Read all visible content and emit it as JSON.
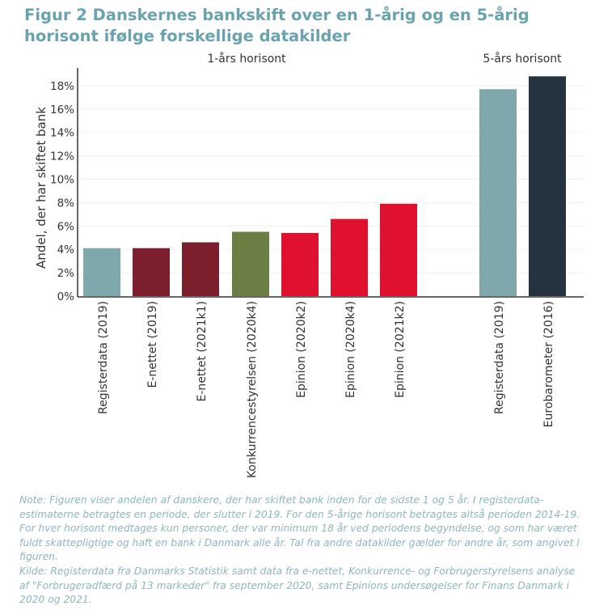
{
  "title": "Figur 2 Danskernes bankskift over en 1-årig og en 5-årig horisont ifølge forskellige datakilder",
  "chart_data": {
    "type": "bar",
    "title": "Figur 2 Danskernes bankskift over en 1-årig og en 5-årig horisont ifølge forskellige datakilder",
    "ylabel": "Andel, der har skiftet bank",
    "xlabel": "",
    "ylim": [
      0,
      18
    ],
    "yticks": [
      "0%",
      "2%",
      "4%",
      "6%",
      "8%",
      "10%",
      "12%",
      "14%",
      "16%",
      "18%"
    ],
    "groups": [
      {
        "label": "1-års horisont"
      },
      {
        "label": "5-års horisont"
      }
    ],
    "categories": [
      "Registerdata (2019)",
      "E-nettet (2019)",
      "E-nettet (2021k1)",
      "Konkurrencestyrelsen (2020k4)",
      "Epinion (2020k2)",
      "Epinion (2020k4)",
      "Epinion (2021k2)",
      "Registerdata (2019)",
      "Eurobarometer (2016)"
    ],
    "group_index": [
      0,
      0,
      0,
      0,
      0,
      0,
      0,
      1,
      1
    ],
    "values": [
      4.1,
      4.1,
      4.6,
      5.5,
      5.4,
      6.6,
      7.9,
      17.7,
      18.8
    ],
    "colors": [
      "#7fa8ad",
      "#7a1f2b",
      "#7a1f2b",
      "#6b7f45",
      "#e0102f",
      "#e0102f",
      "#e0102f",
      "#7fa8ad",
      "#253340"
    ],
    "grid": true
  },
  "note": "Note: Figuren viser andelen af danskere, der har skiftet bank inden for de sidste 1 og 5 år. I registerdata-estimaterne betragtes en periode, der slutter i 2019. For den 5-årige horisont betragtes altså perioden 2014-19. For hver horisont medtages kun personer, der var minimum 18 år ved periodens begyndelse, og som har været fuldt skattepligtige og haft en bank i Danmark alle år. Tal fra andre datakilder gælder for andre år, som angivet i figuren.",
  "source": "Kilde: Registerdata fra Danmarks Statistik samt data fra e-nettet, Konkurrence- og Forbrugerstyrelsens analyse af \"Forbrugeradfærd på 13 markeder\" fra september 2020, samt Epinions undersøgelser for Finans Danmark i 2020 og 2021."
}
